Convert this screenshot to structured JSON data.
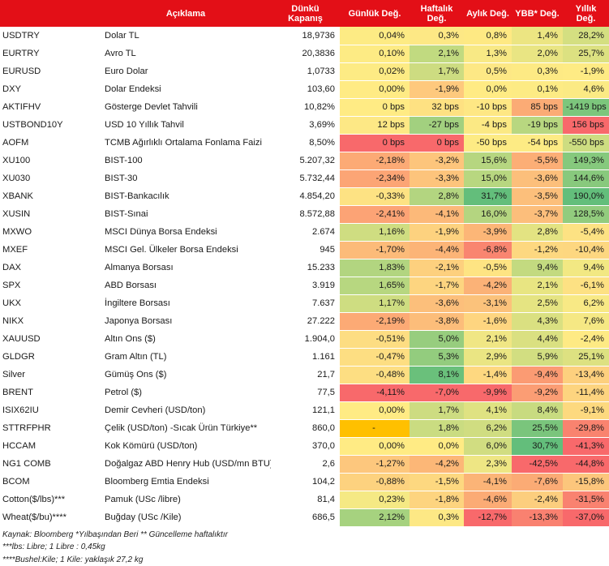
{
  "headers": {
    "code": "",
    "description": "Açıklama",
    "close": "Dünkü Kapanış",
    "daily": "Günlük Değ.",
    "weekly": "Haftalık Değ.",
    "monthly": "Aylık Değ.",
    "ytd": "YBB* Değ.",
    "yearly": "Yıllık Değ."
  },
  "rows": [
    {
      "code": "USDTRY",
      "desc": "Dolar TL",
      "close": "18,9736",
      "daily": "0,04%",
      "weekly": "0,3%",
      "monthly": "0,8%",
      "ytd": "1,4%",
      "yearly": "28,2%",
      "colors": [
        "#fdeb84",
        "#fde885",
        "#fee983",
        "#ece582",
        "#d4df81"
      ]
    },
    {
      "code": "EURTRY",
      "desc": "Avro TL",
      "close": "20,3836",
      "daily": "0,10%",
      "weekly": "2,1%",
      "monthly": "1,3%",
      "ytd": "2,0%",
      "yearly": "25,7%",
      "colors": [
        "#fdeb84",
        "#c1da80",
        "#f8e985",
        "#e9e583",
        "#dce181"
      ]
    },
    {
      "code": "EURUSD",
      "desc": "Euro Dolar",
      "close": "1,0733",
      "daily": "0,02%",
      "weekly": "1,7%",
      "monthly": "0,5%",
      "ytd": "0,3%",
      "yearly": "-1,9%",
      "colors": [
        "#fdeb84",
        "#cddc81",
        "#fde885",
        "#fdea84",
        "#feeb84"
      ]
    },
    {
      "code": "DXY",
      "desc": "Dolar Endeksi",
      "close": "103,60",
      "daily": "0,00%",
      "weekly": "-1,9%",
      "monthly": "0,0%",
      "ytd": "0,1%",
      "yearly": "4,6%",
      "colors": [
        "#ffeb84",
        "#fec97d",
        "#ffeb84",
        "#fdeb84",
        "#fbea84"
      ]
    },
    {
      "code": "AKTIFHV",
      "desc": "Gösterge Devlet Tahvili",
      "close": "10,82%",
      "daily": "0 bps",
      "weekly": "32 bps",
      "monthly": "-10 bps",
      "ytd": "85 bps",
      "yearly": "-1419 bps",
      "colors": [
        "#ffeb84",
        "#fee182",
        "#fee784",
        "#fbab75",
        "#7cc67c"
      ]
    },
    {
      "code": "USTBOND10Y",
      "desc": "USD 10 Yıllık Tahvil",
      "close": "3,69%",
      "daily": "12 bps",
      "weekly": "-27 bps",
      "monthly": "-4 bps",
      "ytd": "-19 bps",
      "yearly": "156 bps",
      "colors": [
        "#fde885",
        "#a2d07f",
        "#fbe984",
        "#b8d780",
        "#f8696b"
      ]
    },
    {
      "code": "AOFM",
      "desc": "TCMB Ağırlıklı Ortalama Fonlama Faizi",
      "close": "8,50%",
      "daily": "0 bps",
      "weekly": "0 bps",
      "monthly": "-50 bps",
      "ytd": "-54 bps",
      "yearly": "-550 bps",
      "colors": [
        "#f8696b",
        "#f8696b",
        "#fdeb84",
        "#fdeb84",
        "#cddd81"
      ]
    },
    {
      "code": "XU100",
      "desc": "BIST-100",
      "close": "5.207,32",
      "daily": "-2,18%",
      "weekly": "-3,2%",
      "monthly": "15,6%",
      "ytd": "-5,5%",
      "yearly": "149,3%",
      "colors": [
        "#fcaa75",
        "#fdc57c",
        "#b6d680",
        "#fcae76",
        "#86c97d"
      ]
    },
    {
      "code": "XU030",
      "desc": "BIST-30",
      "close": "5.732,44",
      "daily": "-2,34%",
      "weekly": "-3,3%",
      "monthly": "15,0%",
      "ytd": "-3,6%",
      "yearly": "144,6%",
      "colors": [
        "#fca575",
        "#fdc47c",
        "#b8d780",
        "#fcbf7b",
        "#88c97d"
      ]
    },
    {
      "code": "XBANK",
      "desc": "BIST-Bankacılık",
      "close": "4.854,20",
      "daily": "-0,33%",
      "weekly": "2,8%",
      "monthly": "31,7%",
      "ytd": "-3,5%",
      "yearly": "190,0%",
      "colors": [
        "#fde283",
        "#b3d580",
        "#63be7b",
        "#fcbf7b",
        "#63be7b"
      ]
    },
    {
      "code": "XUSIN",
      "desc": "BIST-Sınai",
      "close": "8.572,88",
      "daily": "-2,41%",
      "weekly": "-4,1%",
      "monthly": "16,0%",
      "ytd": "-3,7%",
      "yearly": "128,5%",
      "colors": [
        "#fca375",
        "#fcb979",
        "#b4d580",
        "#fcbe7b",
        "#92cc7e"
      ]
    },
    {
      "code": "MXWO",
      "desc": "MSCI Dünya Borsa Endeksi",
      "close": "2.674",
      "daily": "1,16%",
      "weekly": "-1,9%",
      "monthly": "-3,9%",
      "ytd": "2,8%",
      "yearly": "-5,4%",
      "colors": [
        "#cfdd81",
        "#fdd27f",
        "#fcb677",
        "#e3e382",
        "#fde283"
      ]
    },
    {
      "code": "MXEF",
      "desc": "MSCI Gel. Ülkeler Borsa Endeksi",
      "close": "945",
      "daily": "-1,70%",
      "weekly": "-4,4%",
      "monthly": "-6,8%",
      "ytd": "-1,2%",
      "yearly": "-10,4%",
      "colors": [
        "#fcbb79",
        "#fcb477",
        "#f98570",
        "#fdd880",
        "#fdd780"
      ]
    },
    {
      "code": "DAX",
      "desc": "Almanya Borsası",
      "close": "15.233",
      "daily": "1,83%",
      "weekly": "-2,1%",
      "monthly": "-0,5%",
      "ytd": "9,4%",
      "yearly": "9,4%",
      "colors": [
        "#b2d580",
        "#fdd07e",
        "#fee483",
        "#c3da80",
        "#f2e883"
      ]
    },
    {
      "code": "SPX",
      "desc": "ABD Borsası",
      "close": "3.919",
      "daily": "1,65%",
      "weekly": "-1,7%",
      "monthly": "-4,2%",
      "ytd": "2,1%",
      "yearly": "-6,1%",
      "colors": [
        "#b7d780",
        "#fdd580",
        "#fbb277",
        "#e8e582",
        "#fde183"
      ]
    },
    {
      "code": "UKX",
      "desc": "İngiltere Borsası",
      "close": "7.637",
      "daily": "1,17%",
      "weekly": "-3,6%",
      "monthly": "-3,1%",
      "ytd": "2,5%",
      "yearly": "6,2%",
      "colors": [
        "#cedd81",
        "#fcbf7b",
        "#fbc27b",
        "#e5e482",
        "#f8e985"
      ]
    },
    {
      "code": "NIKX",
      "desc": "Japonya Borsası",
      "close": "27.222",
      "daily": "-2,19%",
      "weekly": "-3,8%",
      "monthly": "-1,6%",
      "ytd": "4,3%",
      "yearly": "7,6%",
      "colors": [
        "#fcaa75",
        "#fcbd7a",
        "#fed580",
        "#dae081",
        "#f5e884"
      ]
    },
    {
      "code": "XAUUSD",
      "desc": "Altın Ons ($)",
      "close": "1.904,0",
      "daily": "-0,51%",
      "weekly": "5,0%",
      "monthly": "2,1%",
      "ytd": "4,4%",
      "yearly": "-2,4%",
      "colors": [
        "#fddd82",
        "#97cd7e",
        "#f0e684",
        "#dae081",
        "#feea84"
      ]
    },
    {
      "code": "GLDGR",
      "desc": "Gram Altın (TL)",
      "close": "1.161",
      "daily": "-0,47%",
      "weekly": "5,3%",
      "monthly": "2,9%",
      "ytd": "5,9%",
      "yearly": "25,1%",
      "colors": [
        "#fdde82",
        "#93cc7e",
        "#eae583",
        "#d2de81",
        "#dde181"
      ]
    },
    {
      "code": "Silver",
      "desc": "Gümüş Ons ($)",
      "close": "21,7",
      "daily": "-0,48%",
      "weekly": "8,1%",
      "monthly": "-1,4%",
      "ytd": "-9,4%",
      "yearly": "-13,4%",
      "colors": [
        "#fdde82",
        "#6ac07b",
        "#fed880",
        "#fb9b73",
        "#fdd07e"
      ]
    },
    {
      "code": "BRENT",
      "desc": "Petrol ($)",
      "close": "77,5",
      "daily": "-4,11%",
      "weekly": "-7,0%",
      "monthly": "-9,9%",
      "ytd": "-9,2%",
      "yearly": "-11,4%",
      "colors": [
        "#f8696b",
        "#f8696b",
        "#f8696b",
        "#fb9d74",
        "#fdd47f"
      ]
    },
    {
      "code": "ISIX62IU",
      "desc": "Demir Cevheri (USD/ton)",
      "close": "121,1",
      "daily": "0,00%",
      "weekly": "1,7%",
      "monthly": "4,1%",
      "ytd": "8,4%",
      "yearly": "-9,1%",
      "colors": [
        "#ffeb84",
        "#cddc81",
        "#dfe282",
        "#c8db80",
        "#fdd97f"
      ]
    },
    {
      "code": "STTRFPHR",
      "desc": "Çelik (USD/ton) -Sıcak Ürün Türkiye**",
      "close": "860,0",
      "daily": "-",
      "weekly": "1,8%",
      "monthly": "6,2%",
      "ytd": "25,5%",
      "yearly": "-29,8%",
      "colors": [
        "#ffc000",
        "#cadc81",
        "#d0dd81",
        "#7ac57c",
        "#f9836f"
      ]
    },
    {
      "code": "HCCAM",
      "desc": "Kok Kömürü (USD/ton)",
      "close": "370,0",
      "daily": "0,00%",
      "weekly": "0,0%",
      "monthly": "6,0%",
      "ytd": "30,7%",
      "yearly": "-41,3%",
      "colors": [
        "#ffeb84",
        "#ffeb84",
        "#d1dd81",
        "#63be7b",
        "#f8696b"
      ]
    },
    {
      "code": "NG1 COMB",
      "desc": "Doğalgaz ABD Henry Hub (USD/mn BTU)",
      "close": "2,6",
      "daily": "-1,27%",
      "weekly": "-4,2%",
      "monthly": "2,3%",
      "ytd": "-42,5%",
      "yearly": "-44,8%",
      "colors": [
        "#fdc77d",
        "#fcb777",
        "#eee684",
        "#f8696b",
        "#f8696b"
      ]
    },
    {
      "code": "BCOM",
      "desc": "Bloomberg Emtia Endeksi",
      "close": "104,2",
      "daily": "-0,88%",
      "weekly": "-1,5%",
      "monthly": "-4,1%",
      "ytd": "-7,6%",
      "yearly": "-15,8%",
      "colors": [
        "#fdd27f",
        "#fdd880",
        "#fbb477",
        "#fbab75",
        "#fcc67c"
      ]
    },
    {
      "code": "Cotton($/lbs)***",
      "desc": "Pamuk (USc /libre)",
      "close": "81,4",
      "daily": "0,23%",
      "weekly": "-1,8%",
      "monthly": "-4,6%",
      "ytd": "-2,4%",
      "yearly": "-31,5%",
      "colors": [
        "#f5e984",
        "#fdd47f",
        "#fbab75",
        "#fcce7e",
        "#f98270"
      ]
    },
    {
      "code": "Wheat($/bu)****",
      "desc": "Buğday (USc /Kile)",
      "close": "686,5",
      "daily": "2,12%",
      "weekly": "0,3%",
      "monthly": "-12,7%",
      "ytd": "-13,3%",
      "yearly": "-37,0%",
      "colors": [
        "#a6d27f",
        "#fde885",
        "#f8696b",
        "#f98170",
        "#f8696b"
      ]
    }
  ],
  "notes": [
    "Kaynak: Bloomberg *Yılbaşından Beri  ** Güncelleme haftalıktır",
    "***lbs: Libre; 1 Libre : 0,45kg",
    "****Bushel:Kile; 1 Kile: yaklaşık 27,2 kg"
  ]
}
